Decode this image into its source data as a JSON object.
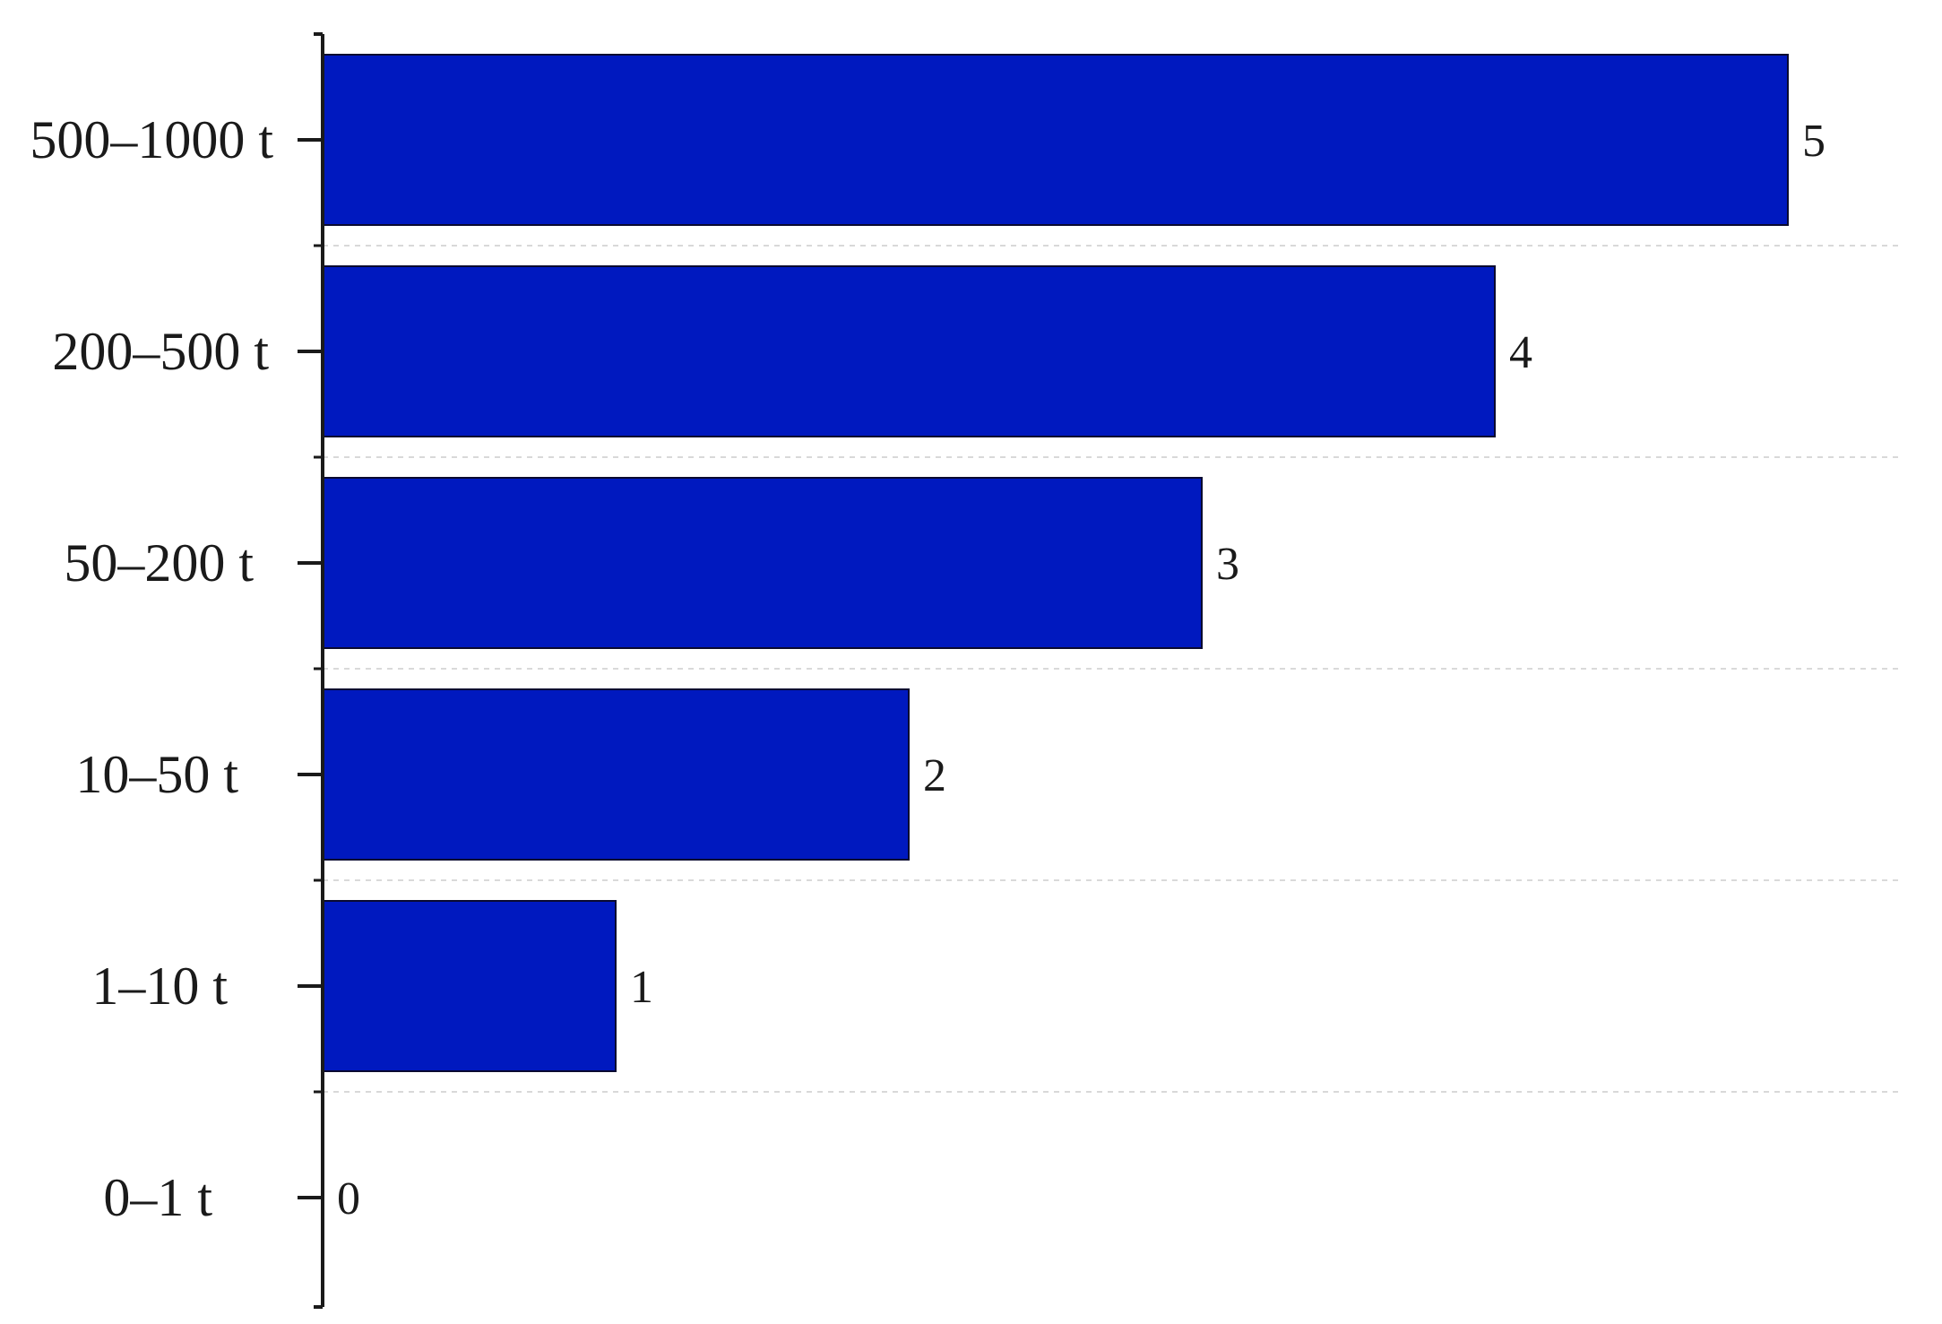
{
  "chart_data": {
    "type": "bar",
    "orientation": "horizontal",
    "categories": [
      "500–1000 t",
      "200–500 t",
      "50–200 t",
      "10–50 t",
      "1–10 t",
      "0–1 t"
    ],
    "values": [
      5,
      4,
      3,
      2,
      1,
      0
    ],
    "data_labels": [
      "5",
      "4",
      "3",
      "2",
      "1",
      "0"
    ],
    "title": "",
    "xlabel": "",
    "ylabel": "",
    "xlim": [
      0,
      5
    ],
    "grid": "horizontal dashed separators",
    "legend": "none",
    "colors": {
      "bar": "#0019bf",
      "bar_edge": "#0a0a30",
      "axis": "#1a1a1a",
      "grid": "#d9d9d9"
    }
  }
}
